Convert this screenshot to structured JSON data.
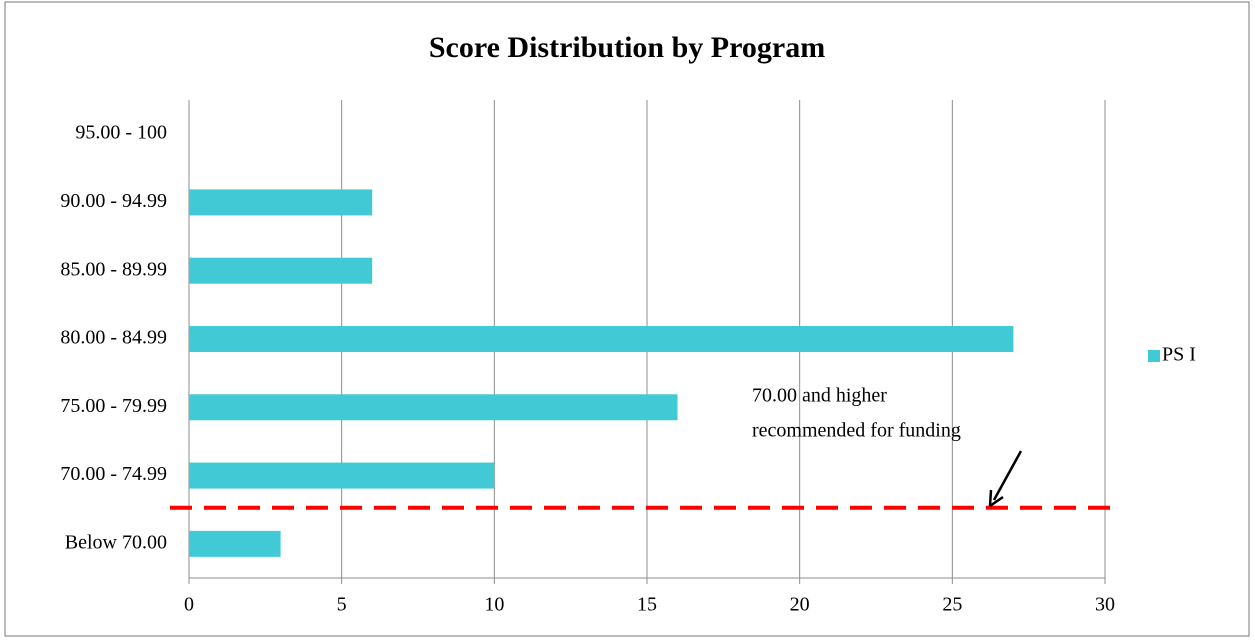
{
  "chart_data": {
    "type": "bar",
    "orientation": "horizontal",
    "title": "Score Distribution by Program",
    "categories": [
      "95.00 - 100",
      "90.00 - 94.99",
      "85.00 - 89.99",
      "80.00 - 84.99",
      "75.00 - 79.99",
      "70.00 - 74.99",
      "Below 70.00"
    ],
    "series": [
      {
        "name": "PS I",
        "color": "#41c9d5",
        "values": [
          0,
          6,
          6,
          27,
          16,
          10,
          3
        ]
      }
    ],
    "xlim": [
      0,
      30
    ],
    "xticks": [
      0,
      5,
      10,
      15,
      20,
      25,
      30
    ],
    "grid": true,
    "legend": "right",
    "annotation": [
      "70.00 and higher",
      "recommended for funding"
    ]
  }
}
